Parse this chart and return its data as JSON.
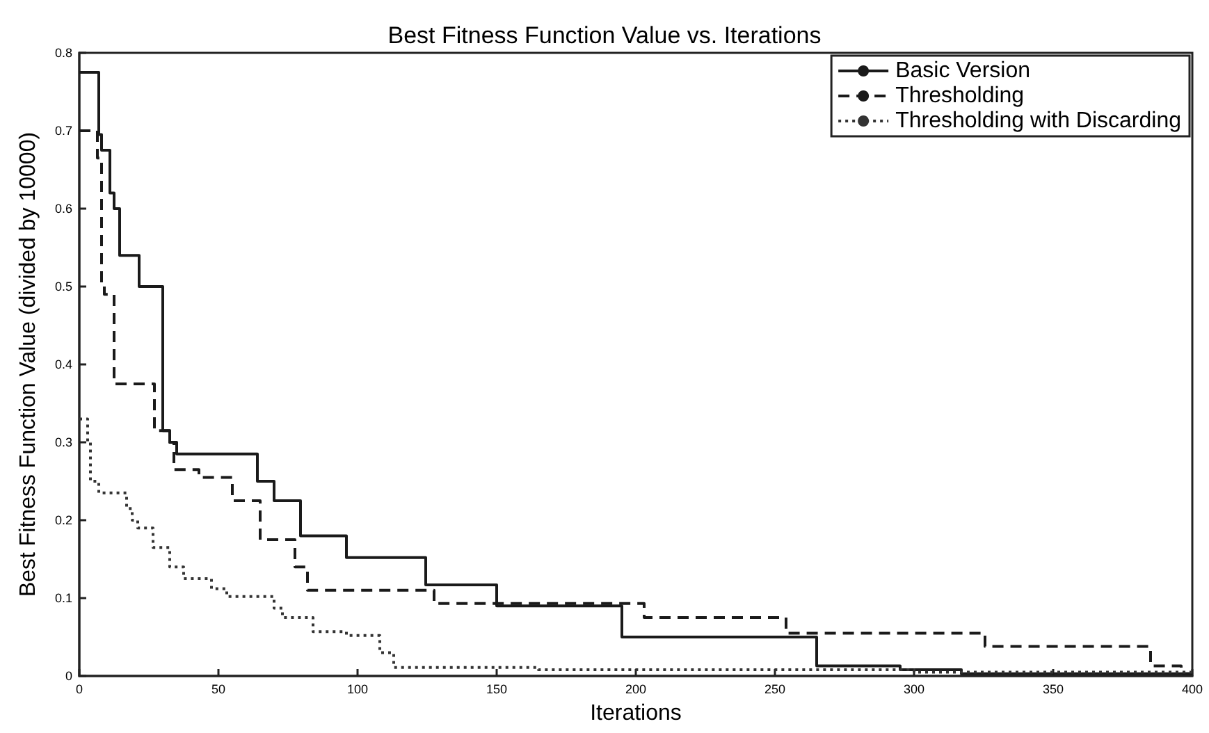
{
  "chart_data": {
    "type": "step",
    "title": "Best Fitness Function Value vs. Iterations",
    "xlabel": "Iterations",
    "ylabel": "Best Fitness Function Value (divided by 10000)",
    "series": [
      {
        "name": "Basic Version",
        "color": "#1a1a1a",
        "line_style": "solid",
        "x": [
          0,
          7,
          8,
          11,
          12.5,
          14.5,
          21.5,
          30,
          32.5,
          35,
          64,
          70,
          79.5,
          96,
          124.5,
          150,
          195,
          265,
          295,
          317,
          400
        ],
        "values": [
          0.775,
          0.695,
          0.675,
          0.62,
          0.6,
          0.54,
          0.5,
          0.315,
          0.3,
          0.285,
          0.25,
          0.225,
          0.18,
          0.152,
          0.117,
          0.09,
          0.05,
          0.013,
          0.008,
          0.003,
          0.003
        ]
      },
      {
        "name": "Thresholding",
        "color": "#1a1a1a",
        "line_style": "dashed",
        "x": [
          0,
          6.5,
          8,
          9,
          12.5,
          27,
          32.5,
          34,
          43,
          55,
          65,
          77.5,
          82,
          127.5,
          203,
          254,
          325.5,
          385,
          396,
          400
        ],
        "values": [
          0.7,
          0.665,
          0.5,
          0.49,
          0.375,
          0.315,
          0.3,
          0.265,
          0.255,
          0.225,
          0.175,
          0.14,
          0.11,
          0.093,
          0.075,
          0.055,
          0.038,
          0.013,
          0.003,
          0.003
        ]
      },
      {
        "name": "Thresholding with Discarding",
        "color": "#333333",
        "line_style": "dotted",
        "x": [
          0,
          3,
          4,
          7,
          17,
          19,
          21,
          26.5,
          32.5,
          37.5,
          47.5,
          53,
          70,
          73,
          84,
          96,
          108,
          113,
          165,
          300,
          400
        ],
        "values": [
          0.33,
          0.3,
          0.25,
          0.235,
          0.215,
          0.2,
          0.19,
          0.165,
          0.14,
          0.125,
          0.112,
          0.102,
          0.087,
          0.075,
          0.057,
          0.052,
          0.03,
          0.011,
          0.008,
          0.005,
          0.005
        ]
      }
    ],
    "xlim": [
      0,
      400
    ],
    "xticks": [
      0,
      50,
      100,
      150,
      200,
      250,
      300,
      350,
      400
    ],
    "ylim": [
      0,
      0.8
    ],
    "yticks": [
      0,
      0.1,
      0.2,
      0.3,
      0.4,
      0.5,
      0.6,
      0.7,
      0.8
    ],
    "grid": false,
    "legend": "top right",
    "marker": "none"
  }
}
